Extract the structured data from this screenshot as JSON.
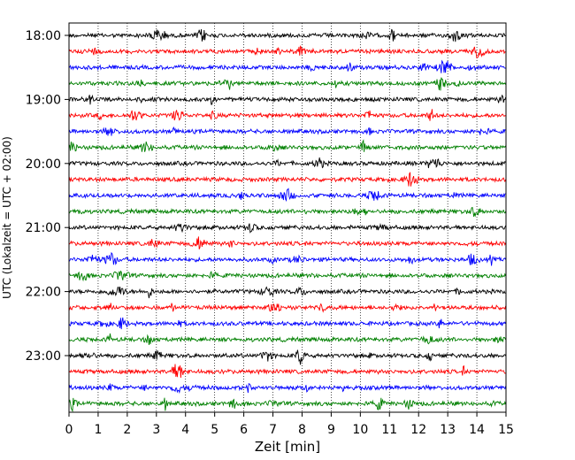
{
  "chart_data": {
    "type": "line",
    "title": "",
    "xlabel": "Zeit  [min]",
    "ylabel": "UTC (Lokalzeit = UTC + 02:00)",
    "xlim": [
      0,
      15
    ],
    "x_ticks": [
      "0",
      "1",
      "2",
      "3",
      "4",
      "5",
      "6",
      "7",
      "8",
      "9",
      "10",
      "11",
      "12",
      "13",
      "14",
      "15"
    ],
    "y_tick_labels": [
      "18:00",
      "19:00",
      "20:00",
      "21:00",
      "22:00",
      "23:00"
    ],
    "grid": "vertical dotted lines at each minute",
    "trace_interval_minutes": 15,
    "trace_start": "18:00",
    "trace_count": 24,
    "trace_colors": [
      "#000000",
      "#ff0000",
      "#0000ff",
      "#008000"
    ]
  }
}
